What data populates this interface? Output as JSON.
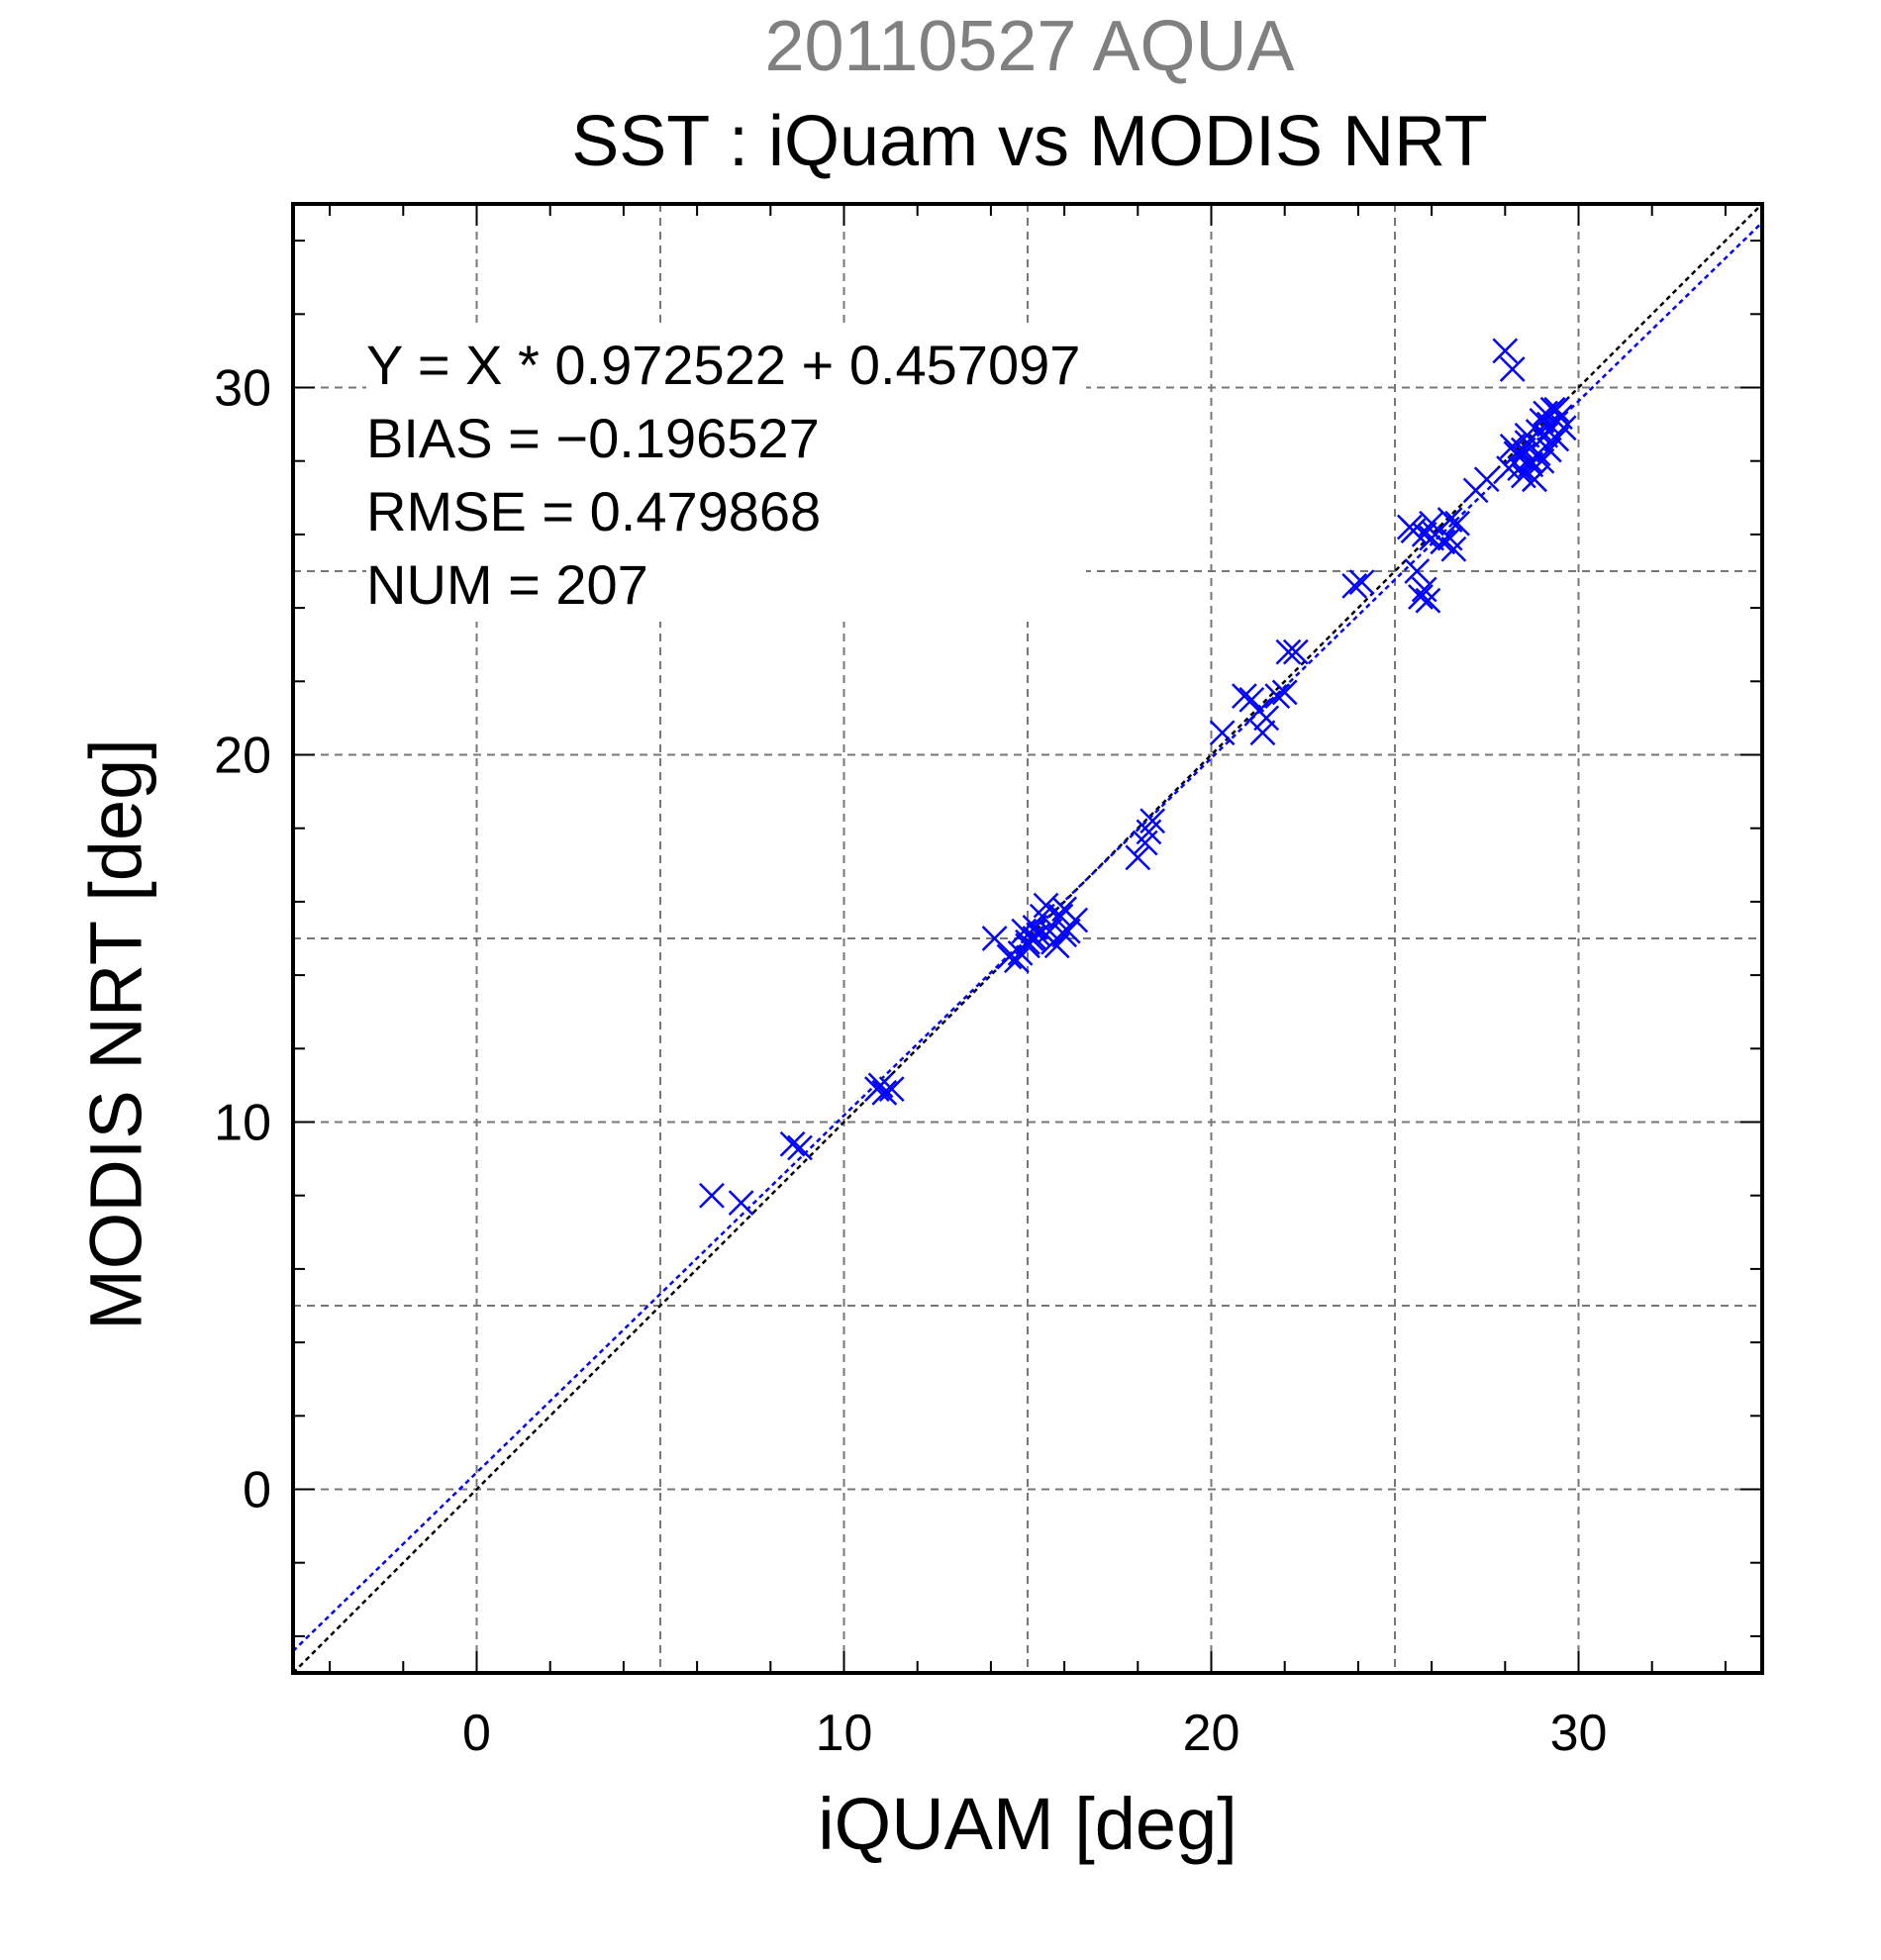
{
  "chart_data": {
    "type": "scatter",
    "title": "20110527 AQUA",
    "subtitle": "SST : iQuam vs MODIS NRT",
    "xlabel": "iQUAM [deg]",
    "ylabel": "MODIS NRT [deg]",
    "xlim": [
      -5,
      35
    ],
    "ylim": [
      -5,
      35
    ],
    "xticks": [
      0,
      10,
      20,
      30
    ],
    "yticks": [
      0,
      10,
      20,
      30
    ],
    "grid": true,
    "annotations": [
      "Y = X * 0.972522 + 0.457097",
      "BIAS = −0.196527",
      "RMSE = 0.479868",
      "NUM = 207"
    ],
    "regression": {
      "slope": 0.972522,
      "intercept": 0.457097,
      "color": "#0000ff"
    },
    "identity_line": {
      "color": "#000000"
    },
    "marker": "x",
    "marker_color": "#0000ff",
    "series": [
      {
        "x": [
          6.4,
          7.2,
          8.6,
          8.8,
          10.9,
          11.1,
          11.3,
          11.0,
          14.1,
          14.5,
          14.7,
          14.9,
          15.0,
          15.1,
          15.2,
          15.3,
          15.4,
          15.5,
          15.6,
          15.8,
          15.9,
          16.0,
          16.1,
          16.3,
          14.8,
          15.0,
          15.2,
          15.7,
          16.0,
          18.0,
          18.2,
          18.4,
          18.3,
          20.3,
          20.9,
          21.1,
          21.3,
          21.4,
          21.5,
          21.8,
          22.0,
          22.1,
          22.3,
          23.9,
          24.1,
          25.4,
          25.6,
          25.7,
          25.8,
          25.9,
          26.0,
          26.1,
          26.3,
          26.5,
          26.6,
          26.7,
          25.5,
          25.8,
          26.0,
          26.5,
          27.2,
          27.5,
          28.0,
          28.2,
          28.3,
          28.5,
          28.6,
          28.7,
          28.8,
          28.9,
          29.0,
          29.1,
          29.2,
          29.3,
          29.4,
          29.5,
          29.6,
          28.1,
          28.4,
          28.6,
          28.8,
          29.0,
          29.2,
          29.4,
          28.5,
          28.9,
          28.2,
          28.7,
          29.1,
          28.4
        ],
        "y": [
          8.0,
          7.8,
          9.4,
          9.3,
          10.9,
          10.8,
          10.9,
          11.0,
          15.0,
          14.5,
          14.4,
          15.2,
          14.8,
          15.0,
          15.3,
          15.1,
          15.6,
          15.9,
          15.2,
          14.8,
          15.6,
          15.1,
          15.2,
          15.5,
          14.6,
          14.9,
          15.0,
          14.9,
          15.8,
          17.2,
          17.6,
          18.2,
          17.9,
          20.6,
          21.6,
          21.5,
          21.2,
          20.6,
          21.0,
          21.6,
          21.7,
          22.8,
          22.8,
          24.6,
          24.7,
          26.2,
          25.0,
          24.3,
          26.0,
          24.2,
          26.3,
          26.0,
          25.8,
          26.4,
          25.6,
          26.3,
          26.1,
          24.5,
          25.9,
          25.9,
          27.2,
          27.5,
          31.0,
          30.5,
          28.2,
          28.3,
          28.7,
          28.0,
          27.5,
          28.8,
          29.1,
          29.3,
          28.3,
          29.4,
          28.6,
          29.2,
          28.9,
          27.8,
          27.8,
          28.5,
          27.5,
          28.0,
          29.0,
          29.4,
          27.6,
          28.2,
          28.4,
          27.9,
          28.7,
          28.1
        ]
      }
    ]
  }
}
